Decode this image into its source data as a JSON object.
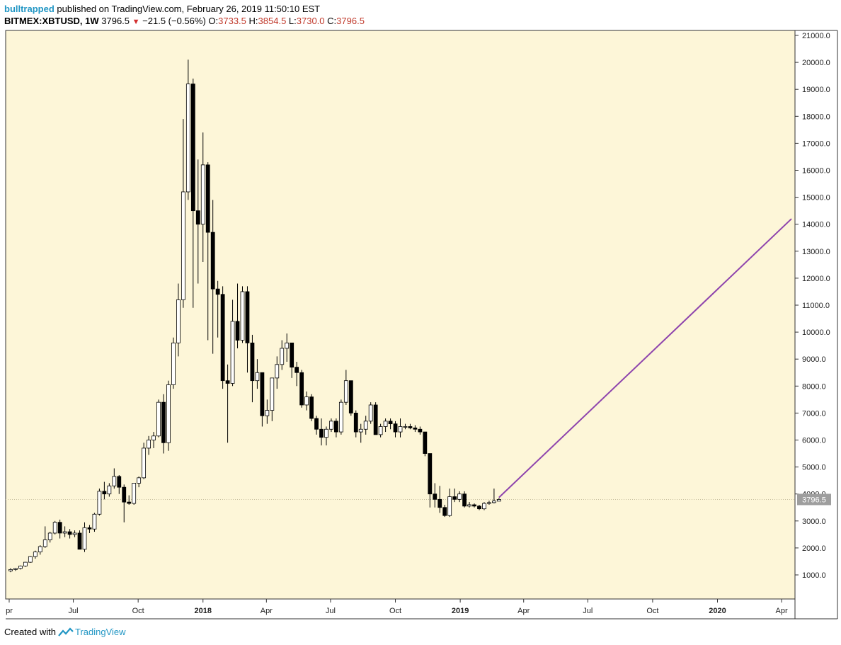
{
  "header": {
    "user": "bulltrapped",
    "published": "published on TradingView.com, February 26, 2019 11:50:10 EST",
    "symbol": "BITMEX:XBTUSD, 1W",
    "last": "3796.5",
    "change": "−21.5 (−0.56%)",
    "o_label": "O:",
    "o_value": "3733.5",
    "h_label": "H:",
    "h_value": "3854.5",
    "l_label": "L:",
    "l_value": "3730.0",
    "c_label": "C:",
    "c_value": "3796.5"
  },
  "footer": {
    "created_with": "Created with",
    "brand": "TradingView"
  },
  "colors": {
    "background": "#fdf6d8",
    "line": "#8e44ad",
    "price_tag": "#9e9e9e",
    "brand": "#2196c4",
    "down": "#d32f2f"
  },
  "chart_data": {
    "type": "candlestick",
    "ylim": [
      0,
      21300
    ],
    "y_ticks": [
      "1000.0",
      "2000.0",
      "3000.0",
      "4000.0",
      "5000.0",
      "6000.0",
      "7000.0",
      "8000.0",
      "9000.0",
      "10000.0",
      "11000.0",
      "12000.0",
      "13000.0",
      "14000.0",
      "15000.0",
      "16000.0",
      "17000.0",
      "18000.0",
      "19000.0",
      "20000.0",
      "21000.0"
    ],
    "x_ticks": [
      {
        "label": "pr",
        "date": "2017-04-01",
        "bold": false
      },
      {
        "label": "Jul",
        "date": "2017-07-01",
        "bold": false
      },
      {
        "label": "Oct",
        "date": "2017-10-01",
        "bold": false
      },
      {
        "label": "2018",
        "date": "2018-01-01",
        "bold": true
      },
      {
        "label": "Apr",
        "date": "2018-04-01",
        "bold": false
      },
      {
        "label": "Jul",
        "date": "2018-07-01",
        "bold": false
      },
      {
        "label": "Oct",
        "date": "2018-10-01",
        "bold": false
      },
      {
        "label": "2019",
        "date": "2019-01-01",
        "bold": true
      },
      {
        "label": "Apr",
        "date": "2019-04-01",
        "bold": false
      },
      {
        "label": "Jul",
        "date": "2019-07-01",
        "bold": false
      },
      {
        "label": "Oct",
        "date": "2019-10-01",
        "bold": false
      },
      {
        "label": "2020",
        "date": "2020-01-01",
        "bold": true
      },
      {
        "label": "Apr",
        "date": "2020-04-01",
        "bold": false
      }
    ],
    "current_price": 3796.5,
    "current_price_label": "3796.5",
    "trend_line": {
      "from": {
        "date": "2019-02-25",
        "value": 3870
      },
      "to": {
        "date": "2020-04-15",
        "value": 14200
      }
    },
    "candles": [
      {
        "date": "2017-04-03",
        "o": 1150,
        "h": 1250,
        "l": 1100,
        "c": 1200
      },
      {
        "date": "2017-04-10",
        "o": 1200,
        "h": 1260,
        "l": 1150,
        "c": 1240
      },
      {
        "date": "2017-04-17",
        "o": 1240,
        "h": 1350,
        "l": 1200,
        "c": 1330
      },
      {
        "date": "2017-04-24",
        "o": 1330,
        "h": 1480,
        "l": 1300,
        "c": 1470
      },
      {
        "date": "2017-05-01",
        "o": 1470,
        "h": 1700,
        "l": 1450,
        "c": 1680
      },
      {
        "date": "2017-05-08",
        "o": 1680,
        "h": 1900,
        "l": 1600,
        "c": 1850
      },
      {
        "date": "2017-05-15",
        "o": 1850,
        "h": 2100,
        "l": 1750,
        "c": 2050
      },
      {
        "date": "2017-05-22",
        "o": 2050,
        "h": 2800,
        "l": 2000,
        "c": 2300
      },
      {
        "date": "2017-05-29",
        "o": 2300,
        "h": 2600,
        "l": 2200,
        "c": 2550
      },
      {
        "date": "2017-06-05",
        "o": 2550,
        "h": 3000,
        "l": 2500,
        "c": 2950
      },
      {
        "date": "2017-06-12",
        "o": 2950,
        "h": 3050,
        "l": 2350,
        "c": 2550
      },
      {
        "date": "2017-06-19",
        "o": 2550,
        "h": 2800,
        "l": 2400,
        "c": 2600
      },
      {
        "date": "2017-06-26",
        "o": 2600,
        "h": 2700,
        "l": 2350,
        "c": 2500
      },
      {
        "date": "2017-07-03",
        "o": 2500,
        "h": 2650,
        "l": 2400,
        "c": 2550
      },
      {
        "date": "2017-07-10",
        "o": 2550,
        "h": 2650,
        "l": 1950,
        "c": 1950
      },
      {
        "date": "2017-07-17",
        "o": 1950,
        "h": 2950,
        "l": 1850,
        "c": 2750
      },
      {
        "date": "2017-07-24",
        "o": 2750,
        "h": 2850,
        "l": 2550,
        "c": 2700
      },
      {
        "date": "2017-07-31",
        "o": 2700,
        "h": 3300,
        "l": 2600,
        "c": 3250
      },
      {
        "date": "2017-08-07",
        "o": 3250,
        "h": 4200,
        "l": 3200,
        "c": 4100
      },
      {
        "date": "2017-08-14",
        "o": 4100,
        "h": 4450,
        "l": 3800,
        "c": 4000
      },
      {
        "date": "2017-08-21",
        "o": 4000,
        "h": 4400,
        "l": 3900,
        "c": 4300
      },
      {
        "date": "2017-08-28",
        "o": 4300,
        "h": 4950,
        "l": 4200,
        "c": 4650
      },
      {
        "date": "2017-09-04",
        "o": 4650,
        "h": 4700,
        "l": 4000,
        "c": 4250
      },
      {
        "date": "2017-09-11",
        "o": 4250,
        "h": 4350,
        "l": 2950,
        "c": 3700
      },
      {
        "date": "2017-09-18",
        "o": 3700,
        "h": 3950,
        "l": 3600,
        "c": 3650
      },
      {
        "date": "2017-09-25",
        "o": 3650,
        "h": 4400,
        "l": 3600,
        "c": 4400
      },
      {
        "date": "2017-10-02",
        "o": 4400,
        "h": 4650,
        "l": 4250,
        "c": 4600
      },
      {
        "date": "2017-10-09",
        "o": 4600,
        "h": 5900,
        "l": 4550,
        "c": 5700
      },
      {
        "date": "2017-10-16",
        "o": 5700,
        "h": 6150,
        "l": 5450,
        "c": 6000
      },
      {
        "date": "2017-10-23",
        "o": 6000,
        "h": 6300,
        "l": 5700,
        "c": 6150
      },
      {
        "date": "2017-10-30",
        "o": 6150,
        "h": 7500,
        "l": 6100,
        "c": 7400
      },
      {
        "date": "2017-11-06",
        "o": 7400,
        "h": 7700,
        "l": 5500,
        "c": 5900
      },
      {
        "date": "2017-11-13",
        "o": 5900,
        "h": 8200,
        "l": 5600,
        "c": 8050
      },
      {
        "date": "2017-11-20",
        "o": 8050,
        "h": 9800,
        "l": 7900,
        "c": 9600
      },
      {
        "date": "2017-11-27",
        "o": 9600,
        "h": 11800,
        "l": 9100,
        "c": 11200
      },
      {
        "date": "2017-12-04",
        "o": 11200,
        "h": 17900,
        "l": 10900,
        "c": 15200
      },
      {
        "date": "2017-12-11",
        "o": 15200,
        "h": 20100,
        "l": 14900,
        "c": 19200
      },
      {
        "date": "2017-12-18",
        "o": 19200,
        "h": 19400,
        "l": 10900,
        "c": 14500
      },
      {
        "date": "2017-12-25",
        "o": 14500,
        "h": 16400,
        "l": 11800,
        "c": 14000
      },
      {
        "date": "2018-01-01",
        "o": 14000,
        "h": 17400,
        "l": 12600,
        "c": 16200
      },
      {
        "date": "2018-01-08",
        "o": 16200,
        "h": 16300,
        "l": 9700,
        "c": 13700
      },
      {
        "date": "2018-01-15",
        "o": 13700,
        "h": 14900,
        "l": 9200,
        "c": 11600
      },
      {
        "date": "2018-01-22",
        "o": 11600,
        "h": 11900,
        "l": 9800,
        "c": 11400
      },
      {
        "date": "2018-01-29",
        "o": 11400,
        "h": 11700,
        "l": 7900,
        "c": 8200
      },
      {
        "date": "2018-02-05",
        "o": 8200,
        "h": 8800,
        "l": 5900,
        "c": 8100
      },
      {
        "date": "2018-02-12",
        "o": 8100,
        "h": 11200,
        "l": 8000,
        "c": 10400
      },
      {
        "date": "2018-02-19",
        "o": 10400,
        "h": 11800,
        "l": 9400,
        "c": 9700
      },
      {
        "date": "2018-02-26",
        "o": 9700,
        "h": 11700,
        "l": 9600,
        "c": 11500
      },
      {
        "date": "2018-03-05",
        "o": 11500,
        "h": 11700,
        "l": 8500,
        "c": 9600
      },
      {
        "date": "2018-03-12",
        "o": 9600,
        "h": 9900,
        "l": 7400,
        "c": 8200
      },
      {
        "date": "2018-03-19",
        "o": 8200,
        "h": 9000,
        "l": 7900,
        "c": 8500
      },
      {
        "date": "2018-03-26",
        "o": 8500,
        "h": 8500,
        "l": 6500,
        "c": 6900
      },
      {
        "date": "2018-04-02",
        "o": 6900,
        "h": 7500,
        "l": 6600,
        "c": 7100
      },
      {
        "date": "2018-04-09",
        "o": 7100,
        "h": 8300,
        "l": 6700,
        "c": 8300
      },
      {
        "date": "2018-04-16",
        "o": 8300,
        "h": 9100,
        "l": 7900,
        "c": 8800
      },
      {
        "date": "2018-04-23",
        "o": 8800,
        "h": 9700,
        "l": 8600,
        "c": 9400
      },
      {
        "date": "2018-04-30",
        "o": 9400,
        "h": 9950,
        "l": 8900,
        "c": 9600
      },
      {
        "date": "2018-05-07",
        "o": 9600,
        "h": 9600,
        "l": 8300,
        "c": 8700
      },
      {
        "date": "2018-05-14",
        "o": 8700,
        "h": 8900,
        "l": 8000,
        "c": 8500
      },
      {
        "date": "2018-05-21",
        "o": 8500,
        "h": 8600,
        "l": 7200,
        "c": 7300
      },
      {
        "date": "2018-05-28",
        "o": 7300,
        "h": 7800,
        "l": 7100,
        "c": 7600
      },
      {
        "date": "2018-06-04",
        "o": 7600,
        "h": 7700,
        "l": 6700,
        "c": 6800
      },
      {
        "date": "2018-06-11",
        "o": 6800,
        "h": 6900,
        "l": 6200,
        "c": 6400
      },
      {
        "date": "2018-06-18",
        "o": 6400,
        "h": 6800,
        "l": 5800,
        "c": 6100
      },
      {
        "date": "2018-06-25",
        "o": 6100,
        "h": 6500,
        "l": 5800,
        "c": 6400
      },
      {
        "date": "2018-07-02",
        "o": 6400,
        "h": 6800,
        "l": 6300,
        "c": 6700
      },
      {
        "date": "2018-07-09",
        "o": 6700,
        "h": 6800,
        "l": 6100,
        "c": 6300
      },
      {
        "date": "2018-07-16",
        "o": 6300,
        "h": 7500,
        "l": 6200,
        "c": 7400
      },
      {
        "date": "2018-07-23",
        "o": 7400,
        "h": 8600,
        "l": 7300,
        "c": 8200
      },
      {
        "date": "2018-07-30",
        "o": 8200,
        "h": 8200,
        "l": 6900,
        "c": 7000
      },
      {
        "date": "2018-08-06",
        "o": 7000,
        "h": 7100,
        "l": 6100,
        "c": 6300
      },
      {
        "date": "2018-08-13",
        "o": 6300,
        "h": 6600,
        "l": 5900,
        "c": 6400
      },
      {
        "date": "2018-08-20",
        "o": 6400,
        "h": 6900,
        "l": 6200,
        "c": 6700
      },
      {
        "date": "2018-08-27",
        "o": 6700,
        "h": 7400,
        "l": 6600,
        "c": 7300
      },
      {
        "date": "2018-09-03",
        "o": 7300,
        "h": 7400,
        "l": 6200,
        "c": 6200
      },
      {
        "date": "2018-09-10",
        "o": 6200,
        "h": 6600,
        "l": 6100,
        "c": 6500
      },
      {
        "date": "2018-09-17",
        "o": 6500,
        "h": 6800,
        "l": 6300,
        "c": 6700
      },
      {
        "date": "2018-09-24",
        "o": 6700,
        "h": 6800,
        "l": 6400,
        "c": 6600
      },
      {
        "date": "2018-10-01",
        "o": 6600,
        "h": 6700,
        "l": 6100,
        "c": 6300
      },
      {
        "date": "2018-10-08",
        "o": 6300,
        "h": 6800,
        "l": 6100,
        "c": 6500
      },
      {
        "date": "2018-10-15",
        "o": 6500,
        "h": 6600,
        "l": 6400,
        "c": 6500
      },
      {
        "date": "2018-10-22",
        "o": 6500,
        "h": 6600,
        "l": 6400,
        "c": 6450
      },
      {
        "date": "2018-10-29",
        "o": 6450,
        "h": 6550,
        "l": 6300,
        "c": 6400
      },
      {
        "date": "2018-11-05",
        "o": 6400,
        "h": 6500,
        "l": 6200,
        "c": 6300
      },
      {
        "date": "2018-11-12",
        "o": 6300,
        "h": 6300,
        "l": 5400,
        "c": 5500
      },
      {
        "date": "2018-11-19",
        "o": 5500,
        "h": 5500,
        "l": 3500,
        "c": 4000
      },
      {
        "date": "2018-11-26",
        "o": 4000,
        "h": 4400,
        "l": 3500,
        "c": 3800
      },
      {
        "date": "2018-12-03",
        "o": 3800,
        "h": 4300,
        "l": 3300,
        "c": 3500
      },
      {
        "date": "2018-12-10",
        "o": 3500,
        "h": 3600,
        "l": 3150,
        "c": 3200
      },
      {
        "date": "2018-12-17",
        "o": 3200,
        "h": 4200,
        "l": 3150,
        "c": 3900
      },
      {
        "date": "2018-12-24",
        "o": 3900,
        "h": 4200,
        "l": 3700,
        "c": 3800
      },
      {
        "date": "2018-12-31",
        "o": 3800,
        "h": 4100,
        "l": 3700,
        "c": 4000
      },
      {
        "date": "2019-01-07",
        "o": 4000,
        "h": 4100,
        "l": 3500,
        "c": 3550
      },
      {
        "date": "2019-01-14",
        "o": 3550,
        "h": 3700,
        "l": 3500,
        "c": 3600
      },
      {
        "date": "2019-01-21",
        "o": 3600,
        "h": 3650,
        "l": 3500,
        "c": 3550
      },
      {
        "date": "2019-01-28",
        "o": 3550,
        "h": 3600,
        "l": 3400,
        "c": 3450
      },
      {
        "date": "2019-02-04",
        "o": 3450,
        "h": 3700,
        "l": 3400,
        "c": 3650
      },
      {
        "date": "2019-02-11",
        "o": 3650,
        "h": 3750,
        "l": 3600,
        "c": 3680
      },
      {
        "date": "2019-02-18",
        "o": 3680,
        "h": 4200,
        "l": 3650,
        "c": 3740
      },
      {
        "date": "2019-02-25",
        "o": 3733.5,
        "h": 3854.5,
        "l": 3730,
        "c": 3796.5
      }
    ]
  }
}
